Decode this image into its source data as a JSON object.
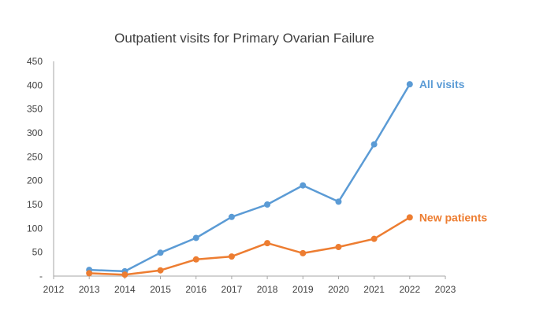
{
  "chart_data": {
    "type": "line",
    "title": "Outpatient visits for Primary Ovarian Failure",
    "xlabel": "",
    "ylabel": "",
    "x_ticks": [
      "2012",
      "2013",
      "2014",
      "2015",
      "2016",
      "2017",
      "2018",
      "2019",
      "2020",
      "2021",
      "2022",
      "2023"
    ],
    "y_ticks": [
      "-",
      "50",
      "100",
      "150",
      "200",
      "250",
      "300",
      "350",
      "400",
      "450"
    ],
    "xlim": [
      2012,
      2023
    ],
    "ylim": [
      0,
      450
    ],
    "grid": false,
    "legend": "inline labels at line ends",
    "series": [
      {
        "name": "All visits",
        "color": "#5B9BD5",
        "x": [
          2013,
          2014,
          2015,
          2016,
          2017,
          2018,
          2019,
          2020,
          2021,
          2022
        ],
        "values": [
          13,
          10,
          49,
          80,
          124,
          150,
          190,
          156,
          276,
          402
        ]
      },
      {
        "name": "New patients",
        "color": "#ED7D31",
        "x": [
          2013,
          2014,
          2015,
          2016,
          2017,
          2018,
          2019,
          2020,
          2021,
          2022
        ],
        "values": [
          6,
          3,
          12,
          35,
          41,
          69,
          48,
          61,
          78,
          123
        ]
      }
    ]
  }
}
